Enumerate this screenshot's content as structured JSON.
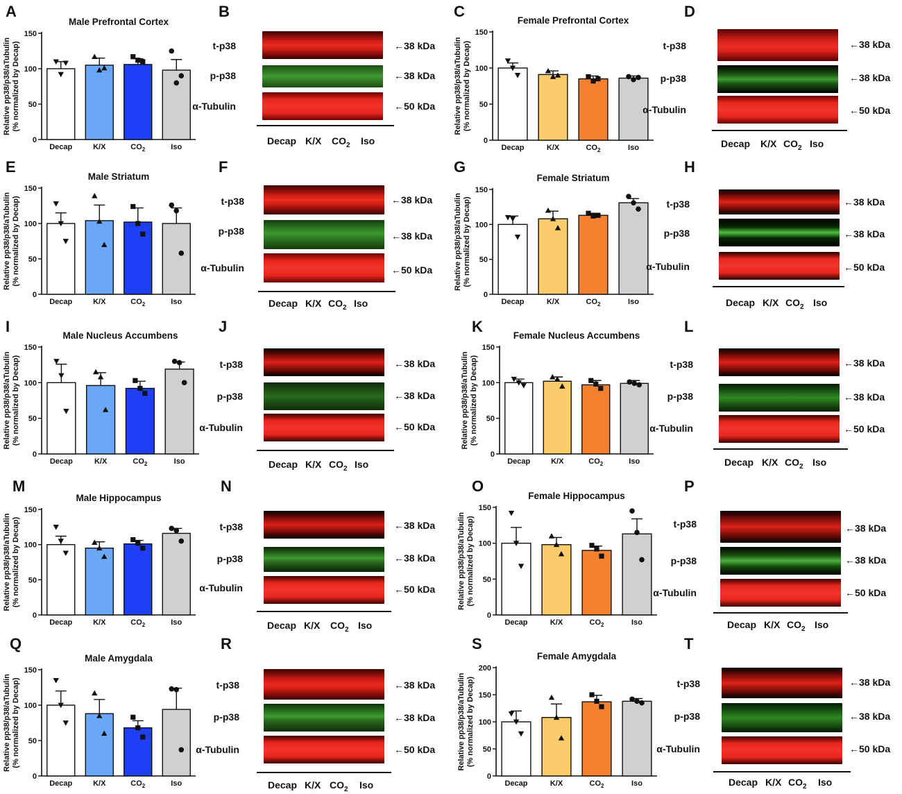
{
  "colors": {
    "Decap": "#ffffff",
    "K/X_male": "#6aa8f7",
    "CO2_male": "#1f3ff4",
    "K/X_female": "#fccb6a",
    "CO2_female": "#f3812f",
    "Iso": "#d0d0d0",
    "blot_red": "#e3231d",
    "blot_green": "#49b23a"
  },
  "ylabel_line1": "Relative pp38/p38/aTubulin",
  "ylabel_line2": "(% normalized by Decap)",
  "blot_labels": {
    "t": "t-p38",
    "p": "p-p38",
    "tub": "α-Tubulin",
    "kda38": "←38 kDa",
    "kda50": "←50 kDa",
    "lanes": [
      "Decap",
      "K/X",
      "CO",
      "Iso"
    ],
    "sub2": "2"
  },
  "chart_data": [
    {
      "letter": "A",
      "type": "bar",
      "title": "Male Prefrontal Cortex",
      "sex": "male",
      "categories": [
        "Decap",
        "K/X",
        "CO",
        "Iso"
      ],
      "sub2": "2",
      "ylim": [
        0,
        150
      ],
      "ticks": [
        "0",
        "50",
        "100",
        "150"
      ],
      "values": [
        100,
        105,
        106,
        98
      ],
      "sem": [
        10,
        10,
        8,
        15
      ],
      "points": [
        [
          110,
          92,
          108
        ],
        [
          117,
          98,
          101
        ],
        [
          117,
          112,
          110
        ],
        [
          125,
          80,
          90
        ]
      ]
    },
    {
      "letter": "C",
      "type": "bar",
      "title": "Female Prefrontal Cortex",
      "sex": "female",
      "categories": [
        "Decap",
        "K/X",
        "CO",
        "Iso"
      ],
      "sub2": "2",
      "ylim": [
        0,
        150
      ],
      "ticks": [
        "0",
        "50",
        "100",
        "150"
      ],
      "values": [
        100,
        91,
        85,
        86
      ],
      "sem": [
        7,
        5,
        4,
        3
      ],
      "points": [
        [
          110,
          100,
          90
        ],
        [
          96,
          88,
          90
        ],
        [
          88,
          82,
          85
        ],
        [
          88,
          84,
          87
        ]
      ]
    },
    {
      "letter": "E",
      "type": "bar",
      "title": "Male Striatum",
      "sex": "male",
      "categories": [
        "Decap",
        "K/X",
        "CO",
        "Iso"
      ],
      "sub2": "2",
      "ylim": [
        0,
        150
      ],
      "ticks": [
        "0",
        "50",
        "100",
        "150"
      ],
      "values": [
        100,
        104,
        102,
        100
      ],
      "sem": [
        15,
        22,
        20,
        22
      ],
      "points": [
        [
          128,
          100,
          75
        ],
        [
          139,
          103,
          70
        ],
        [
          124,
          100,
          85
        ],
        [
          126,
          118,
          58
        ]
      ]
    },
    {
      "letter": "G",
      "type": "bar",
      "title": "Female Striatum",
      "sex": "female",
      "categories": [
        "Decap",
        "K/X",
        "CO",
        "Iso"
      ],
      "sub2": "2",
      "ylim": [
        0,
        150
      ],
      "ticks": [
        "0",
        "50",
        "100",
        "150"
      ],
      "values": [
        100,
        108,
        113,
        131
      ],
      "sem": [
        12,
        11,
        3,
        6
      ],
      "points": [
        [
          110,
          108,
          82
        ],
        [
          120,
          108,
          95
        ],
        [
          116,
          112,
          113
        ],
        [
          140,
          131,
          122
        ]
      ]
    },
    {
      "letter": "I",
      "type": "bar",
      "title": "Male Nucleus Accumbens",
      "sex": "male",
      "categories": [
        "Decap",
        "K/X",
        "CO",
        "Iso"
      ],
      "sub2": "2",
      "ylim": [
        0,
        150
      ],
      "ticks": [
        "0",
        "50",
        "100",
        "150"
      ],
      "values": [
        100,
        96,
        92,
        119
      ],
      "sem": [
        26,
        18,
        10,
        10
      ],
      "points": [
        [
          130,
          110,
          60
        ],
        [
          115,
          108,
          62
        ],
        [
          103,
          92,
          85
        ],
        [
          130,
          128,
          100
        ]
      ]
    },
    {
      "letter": "K",
      "type": "bar",
      "title": "Female Nucleus Accumbens",
      "sex": "female",
      "categories": [
        "Decap",
        "K/X",
        "CO",
        "Iso"
      ],
      "sub2": "2",
      "ylim": [
        0,
        150
      ],
      "ticks": [
        "0",
        "50",
        "100",
        "150"
      ],
      "values": [
        100,
        102,
        97,
        99
      ],
      "sem": [
        5,
        6,
        6,
        4
      ],
      "points": [
        [
          105,
          100,
          96
        ],
        [
          108,
          105,
          95
        ],
        [
          103,
          98,
          92
        ],
        [
          101,
          99,
          97
        ]
      ]
    },
    {
      "letter": "M",
      "type": "bar",
      "title": "Male Hippocampus",
      "sex": "male",
      "categories": [
        "Decap",
        "K/X",
        "CO",
        "Iso"
      ],
      "sub2": "2",
      "ylim": [
        0,
        150
      ],
      "ticks": [
        "0",
        "50",
        "100",
        "150"
      ],
      "values": [
        100,
        95,
        101,
        116
      ],
      "sem": [
        12,
        9,
        5,
        7
      ],
      "points": [
        [
          125,
          105,
          88
        ],
        [
          103,
          95,
          83
        ],
        [
          107,
          102,
          95
        ],
        [
          123,
          120,
          105
        ]
      ]
    },
    {
      "letter": "O",
      "type": "bar",
      "title": "Female Hippocampus",
      "sex": "female",
      "categories": [
        "Decap",
        "K/X",
        "CO",
        "Iso"
      ],
      "sub2": "2",
      "ylim": [
        0,
        150
      ],
      "ticks": [
        "0",
        "50",
        "100",
        "150"
      ],
      "values": [
        100,
        98,
        90,
        113
      ],
      "sem": [
        22,
        10,
        6,
        21
      ],
      "points": [
        [
          142,
          100,
          68
        ],
        [
          110,
          98,
          85
        ],
        [
          97,
          92,
          82
        ],
        [
          145,
          115,
          77
        ]
      ]
    },
    {
      "letter": "Q",
      "type": "bar",
      "title": "Male Amygdala",
      "sex": "male",
      "categories": [
        "Decap",
        "K/X",
        "CO",
        "Iso"
      ],
      "sub2": "2",
      "ylim": [
        0,
        150
      ],
      "ticks": [
        "0",
        "50",
        "100",
        "150"
      ],
      "values": [
        100,
        88,
        68,
        94
      ],
      "sem": [
        20,
        20,
        10,
        30
      ],
      "points": [
        [
          135,
          100,
          75
        ],
        [
          117,
          85,
          60
        ],
        [
          83,
          68,
          55
        ],
        [
          123,
          122,
          37
        ]
      ]
    },
    {
      "letter": "S",
      "type": "bar",
      "title": "Female Amygdala",
      "sex": "female",
      "categories": [
        "Decap",
        "K/X",
        "CO",
        "Iso"
      ],
      "sub2": "2",
      "ylim": [
        0,
        200
      ],
      "ticks": [
        "0",
        "50",
        "100",
        "150",
        "200"
      ],
      "values": [
        100,
        108,
        137,
        138
      ],
      "sem": [
        20,
        25,
        12,
        5
      ],
      "points": [
        [
          115,
          100,
          78
        ],
        [
          145,
          108,
          70
        ],
        [
          150,
          138,
          128
        ],
        [
          142,
          138,
          135
        ]
      ]
    }
  ],
  "blots": [
    {
      "letter": "B"
    },
    {
      "letter": "D"
    },
    {
      "letter": "F"
    },
    {
      "letter": "H"
    },
    {
      "letter": "J"
    },
    {
      "letter": "L"
    },
    {
      "letter": "N"
    },
    {
      "letter": "P"
    },
    {
      "letter": "R"
    },
    {
      "letter": "T"
    }
  ]
}
